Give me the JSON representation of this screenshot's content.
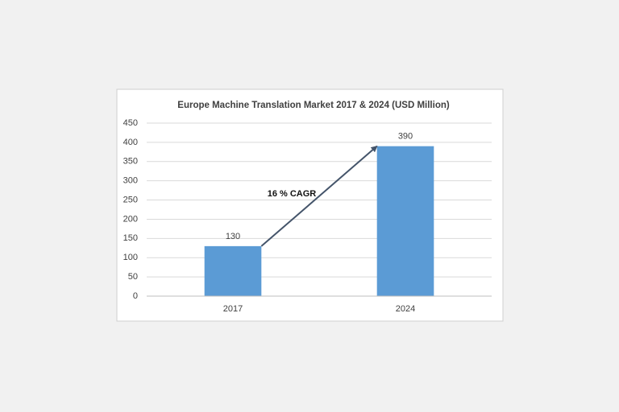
{
  "chart_data": {
    "type": "bar",
    "title": "Europe Machine  Translation  Market  2017 & 2024 (USD  Million)",
    "categories": [
      "2017",
      "2024"
    ],
    "values": [
      130,
      390
    ],
    "color": "#5b9bd5",
    "ylim": [
      0,
      450
    ],
    "yticks": [
      0,
      50,
      100,
      150,
      200,
      250,
      300,
      350,
      400,
      450
    ],
    "grid": true,
    "annotation": "16 % CAGR"
  }
}
